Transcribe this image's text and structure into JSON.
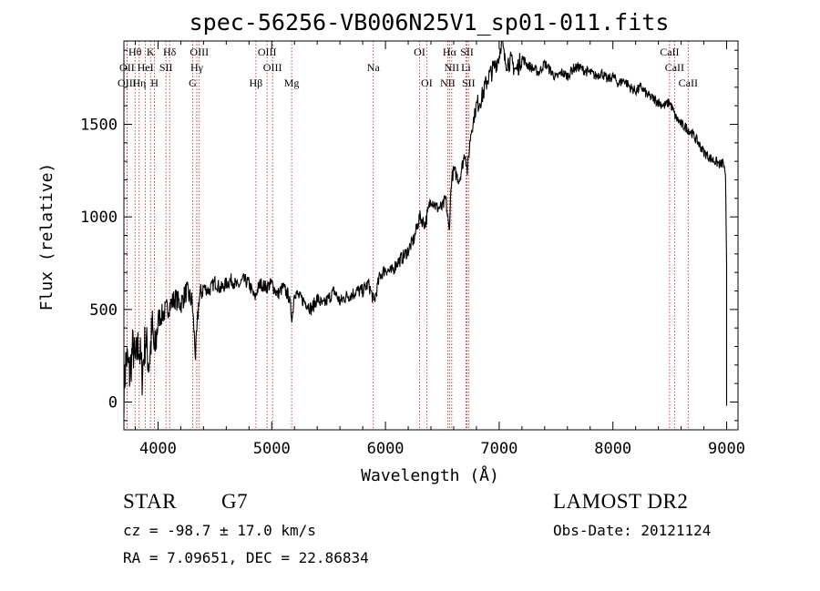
{
  "chart_data": {
    "type": "line",
    "title": "spec-56256-VB006N25V1_sp01-011.fits",
    "xlabel": "Wavelength (Å)",
    "ylabel": "Flux (relative)",
    "xlim": [
      3700,
      9100
    ],
    "ylim": [
      -150,
      1950
    ],
    "xticks": [
      4000,
      5000,
      6000,
      7000,
      8000,
      9000
    ],
    "yticks": [
      0,
      500,
      1000,
      1500
    ],
    "series": [
      {
        "name": "flux",
        "x": [
          3700,
          3720,
          3750,
          3780,
          3800,
          3830,
          3860,
          3890,
          3920,
          3950,
          3970,
          4000,
          4050,
          4100,
          4150,
          4200,
          4250,
          4300,
          4330,
          4360,
          4400,
          4450,
          4500,
          4550,
          4600,
          4650,
          4700,
          4750,
          4800,
          4850,
          4870,
          4900,
          4950,
          5000,
          5050,
          5100,
          5150,
          5180,
          5200,
          5250,
          5300,
          5350,
          5400,
          5450,
          5500,
          5550,
          5600,
          5650,
          5700,
          5750,
          5800,
          5850,
          5900,
          5950,
          6000,
          6050,
          6100,
          6150,
          6200,
          6250,
          6300,
          6350,
          6400,
          6450,
          6500,
          6530,
          6560,
          6580,
          6600,
          6650,
          6700,
          6720,
          6750,
          6800,
          6850,
          6900,
          6950,
          7000,
          7020,
          7050,
          7100,
          7150,
          7200,
          7250,
          7300,
          7350,
          7400,
          7450,
          7500,
          7550,
          7600,
          7650,
          7700,
          7750,
          7800,
          7850,
          7900,
          7950,
          8000,
          8050,
          8100,
          8150,
          8200,
          8250,
          8300,
          8350,
          8400,
          8450,
          8500,
          8550,
          8600,
          8650,
          8700,
          8750,
          8800,
          8850,
          8900,
          8950,
          8970,
          8990,
          9000
        ],
        "y": [
          50,
          250,
          150,
          300,
          200,
          320,
          150,
          350,
          200,
          400,
          250,
          450,
          480,
          520,
          560,
          530,
          600,
          540,
          250,
          560,
          620,
          600,
          650,
          610,
          640,
          660,
          620,
          660,
          640,
          560,
          600,
          640,
          620,
          640,
          580,
          620,
          570,
          450,
          600,
          560,
          540,
          500,
          560,
          520,
          560,
          600,
          540,
          570,
          580,
          600,
          600,
          640,
          540,
          680,
          720,
          700,
          750,
          780,
          820,
          880,
          1000,
          960,
          1100,
          1050,
          1050,
          1100,
          920,
          1200,
          1250,
          1200,
          1350,
          1250,
          1450,
          1600,
          1650,
          1750,
          1800,
          1870,
          1960,
          1840,
          1840,
          1790,
          1860,
          1820,
          1800,
          1780,
          1830,
          1790,
          1750,
          1780,
          1760,
          1800,
          1810,
          1790,
          1780,
          1760,
          1780,
          1740,
          1760,
          1720,
          1740,
          1700,
          1680,
          1700,
          1660,
          1640,
          1620,
          1600,
          1620,
          1540,
          1500,
          1480,
          1450,
          1400,
          1350,
          1320,
          1300,
          1280,
          1300,
          1200,
          750
        ]
      }
    ],
    "lines": [
      {
        "label": "Hθ",
        "x": 3798,
        "row": 1
      },
      {
        "label": "K",
        "x": 3934,
        "row": 1
      },
      {
        "label": "Hδ",
        "x": 4102,
        "row": 1
      },
      {
        "label": "OIII",
        "x": 4363,
        "row": 1
      },
      {
        "label": "OIII",
        "x": 4959,
        "row": 1
      },
      {
        "label": "OI",
        "x": 6300,
        "row": 1
      },
      {
        "label": "Hα",
        "x": 6563,
        "row": 1
      },
      {
        "label": "SII",
        "x": 6717,
        "row": 1
      },
      {
        "label": "CaII",
        "x": 8498,
        "row": 1
      },
      {
        "label": "OII",
        "x": 3727,
        "row": 2
      },
      {
        "label": "HeI",
        "x": 3889,
        "row": 2
      },
      {
        "label": "SII",
        "x": 4070,
        "row": 2
      },
      {
        "label": "Hγ",
        "x": 4341,
        "row": 2
      },
      {
        "label": "OIII",
        "x": 5007,
        "row": 2
      },
      {
        "label": "Na",
        "x": 5893,
        "row": 2
      },
      {
        "label": "NII",
        "x": 6583,
        "row": 2
      },
      {
        "label": "Li",
        "x": 6708,
        "row": 2
      },
      {
        "label": "CaII",
        "x": 8542,
        "row": 2
      },
      {
        "label": "OIII",
        "x": 3727,
        "row": 3
      },
      {
        "label": "Hη",
        "x": 3835,
        "row": 3
      },
      {
        "label": "H",
        "x": 3969,
        "row": 3
      },
      {
        "label": "G",
        "x": 4305,
        "row": 3
      },
      {
        "label": "Hβ",
        "x": 4861,
        "row": 3
      },
      {
        "label": "Mg",
        "x": 5175,
        "row": 3
      },
      {
        "label": "OI",
        "x": 6363,
        "row": 3
      },
      {
        "label": "NII",
        "x": 6548,
        "row": 3
      },
      {
        "label": "SII",
        "x": 6731,
        "row": 3
      },
      {
        "label": "CaII",
        "x": 8662,
        "row": 3
      }
    ],
    "line_color": "#b02020",
    "grid": false,
    "legend": "none"
  },
  "info": {
    "class_label": "STAR",
    "subclass": "G7",
    "survey": "LAMOST DR2",
    "cz": "cz = -98.7 ± 17.0 km/s",
    "obs_date": "Obs-Date: 20121124",
    "radec": "RA =   7.09651, DEC =  22.86834"
  }
}
